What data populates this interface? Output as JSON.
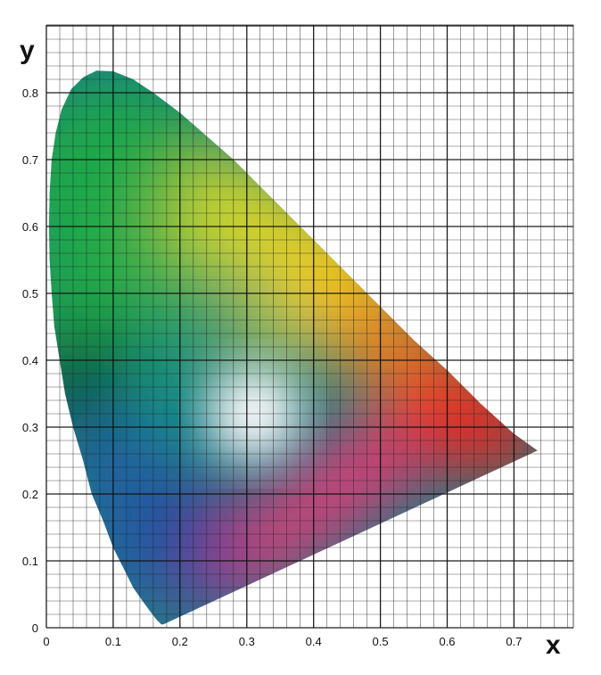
{
  "chart_data": {
    "type": "chromaticity-diagram",
    "xlabel": "x",
    "ylabel": "y",
    "xlim": [
      0,
      0.8
    ],
    "ylim": [
      0,
      0.85
    ],
    "x_ticks": [
      "0",
      "0.1",
      "0.2",
      "0.3",
      "0.4",
      "0.5",
      "0.6",
      "0.7"
    ],
    "y_ticks": [
      "0",
      "0.1",
      "0.2",
      "0.3",
      "0.4",
      "0.5",
      "0.6",
      "0.7",
      "0.8"
    ],
    "grid": true,
    "grid_minor_step": 0.02,
    "grid_major_step": 0.1,
    "spectral_locus": [
      [
        0.175,
        0.005
      ],
      [
        0.172,
        0.005
      ],
      [
        0.165,
        0.012
      ],
      [
        0.155,
        0.025
      ],
      [
        0.144,
        0.04
      ],
      [
        0.13,
        0.06
      ],
      [
        0.115,
        0.09
      ],
      [
        0.1,
        0.12
      ],
      [
        0.085,
        0.16
      ],
      [
        0.068,
        0.2
      ],
      [
        0.055,
        0.25
      ],
      [
        0.04,
        0.3
      ],
      [
        0.028,
        0.35
      ],
      [
        0.02,
        0.4
      ],
      [
        0.012,
        0.45
      ],
      [
        0.008,
        0.5
      ],
      [
        0.005,
        0.55
      ],
      [
        0.004,
        0.6
      ],
      [
        0.005,
        0.65
      ],
      [
        0.008,
        0.7
      ],
      [
        0.014,
        0.74
      ],
      [
        0.023,
        0.775
      ],
      [
        0.037,
        0.805
      ],
      [
        0.055,
        0.823
      ],
      [
        0.075,
        0.833
      ],
      [
        0.1,
        0.832
      ],
      [
        0.13,
        0.82
      ],
      [
        0.16,
        0.8
      ],
      [
        0.2,
        0.77
      ],
      [
        0.24,
        0.735
      ],
      [
        0.28,
        0.7
      ],
      [
        0.32,
        0.66
      ],
      [
        0.36,
        0.62
      ],
      [
        0.4,
        0.58
      ],
      [
        0.45,
        0.53
      ],
      [
        0.5,
        0.48
      ],
      [
        0.55,
        0.43
      ],
      [
        0.6,
        0.385
      ],
      [
        0.65,
        0.335
      ],
      [
        0.7,
        0.29
      ],
      [
        0.735,
        0.265
      ]
    ],
    "purple_line": [
      [
        0.735,
        0.265
      ],
      [
        0.175,
        0.005
      ]
    ],
    "white_point": [
      0.31,
      0.32
    ],
    "region_colors": {
      "green": "#1aa84a",
      "dark_green": "#0e5a3a",
      "teal": "#119686",
      "yellow_green": "#c7d52c",
      "yellow": "#f4cc13",
      "orange": "#ef8c1e",
      "red": "#e42620",
      "magenta": "#e03b73",
      "purple": "#5e3f9a",
      "blue": "#2156a7",
      "deep_blue": "#2e3596",
      "white": "#f4f1f4"
    }
  }
}
